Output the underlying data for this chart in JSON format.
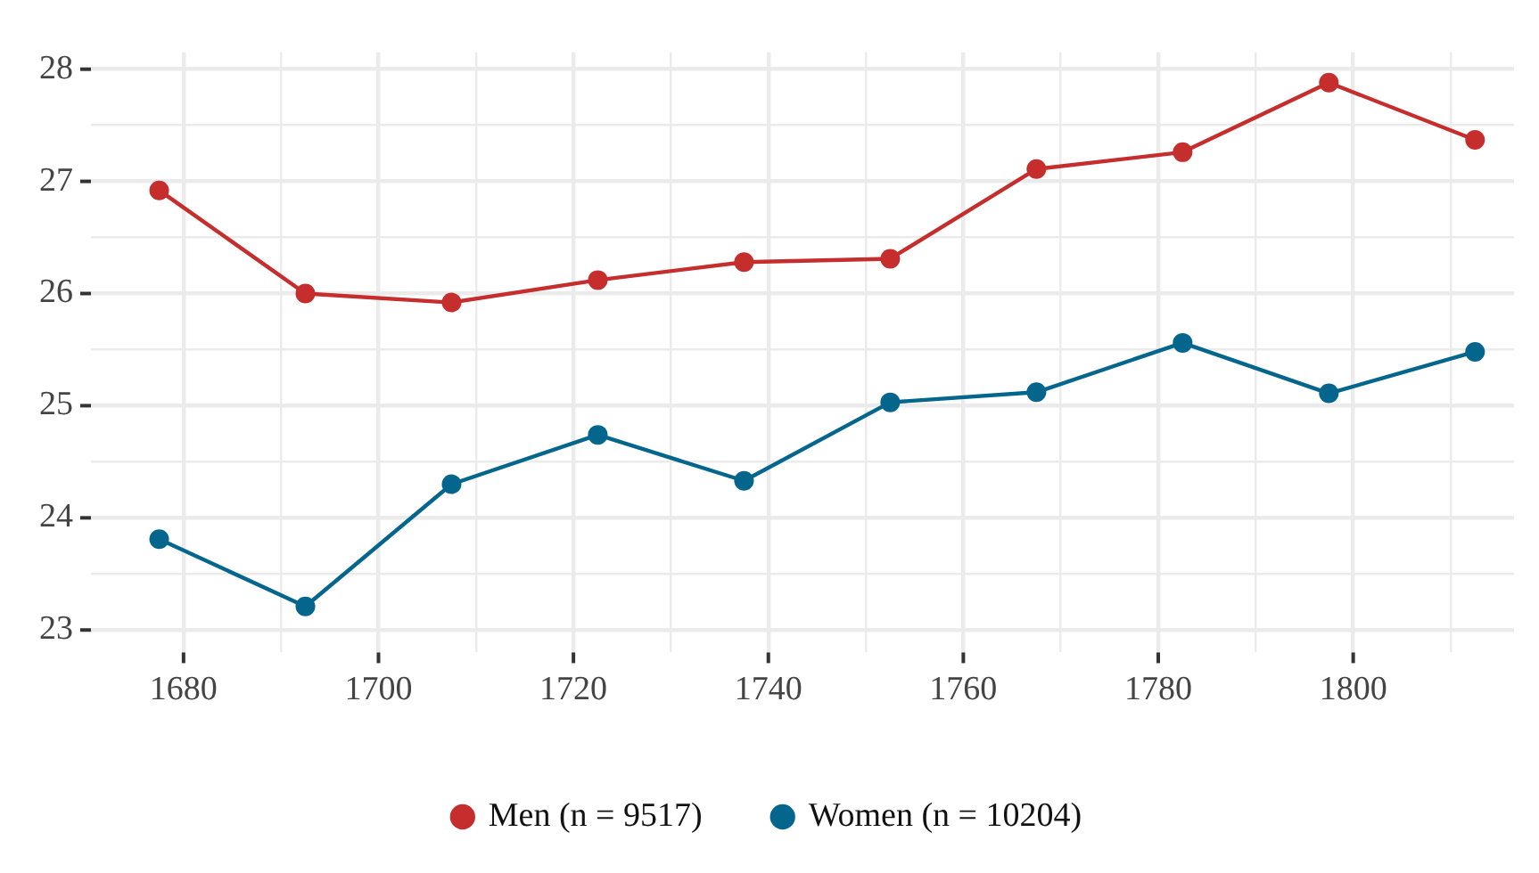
{
  "chart_data": {
    "type": "line",
    "x": [
      1677.5,
      1692.5,
      1707.5,
      1722.5,
      1737.5,
      1752.5,
      1767.5,
      1782.5,
      1797.5,
      1812.5
    ],
    "series": [
      {
        "name": "Men (n = 9517)",
        "color": "#c62d2d",
        "values": [
          26.92,
          26.0,
          25.92,
          26.12,
          26.28,
          26.31,
          27.11,
          27.26,
          27.88,
          27.37
        ]
      },
      {
        "name": "Women (n = 10204)",
        "color": "#04668c",
        "values": [
          23.81,
          23.21,
          24.3,
          24.74,
          24.33,
          25.03,
          25.12,
          25.56,
          25.11,
          25.48
        ]
      }
    ],
    "xlim": [
      1670.5,
      1816.5
    ],
    "xticks": [
      1680,
      {
        "value": 1690,
        "label": null
      },
      1700,
      {
        "value": 1710,
        "label": null
      },
      1720,
      {
        "value": 1730,
        "label": null
      },
      1740,
      {
        "value": 1750,
        "label": null
      },
      1760,
      {
        "value": 1770,
        "label": null
      },
      1780,
      {
        "value": 1790,
        "label": null
      },
      1800,
      {
        "value": 1810,
        "label": null
      }
    ],
    "ylim": [
      22.8,
      28.15
    ],
    "yticks": [
      23,
      {
        "value": 23.5,
        "label": null
      },
      24,
      {
        "value": 24.5,
        "label": null
      },
      25,
      {
        "value": 25.5,
        "label": null
      },
      26,
      {
        "value": 26.5,
        "label": null
      },
      27,
      {
        "value": 27.5,
        "label": null
      },
      28
    ],
    "grid": true,
    "legend": "bottom",
    "marker": "circle",
    "line_style": "solid"
  }
}
